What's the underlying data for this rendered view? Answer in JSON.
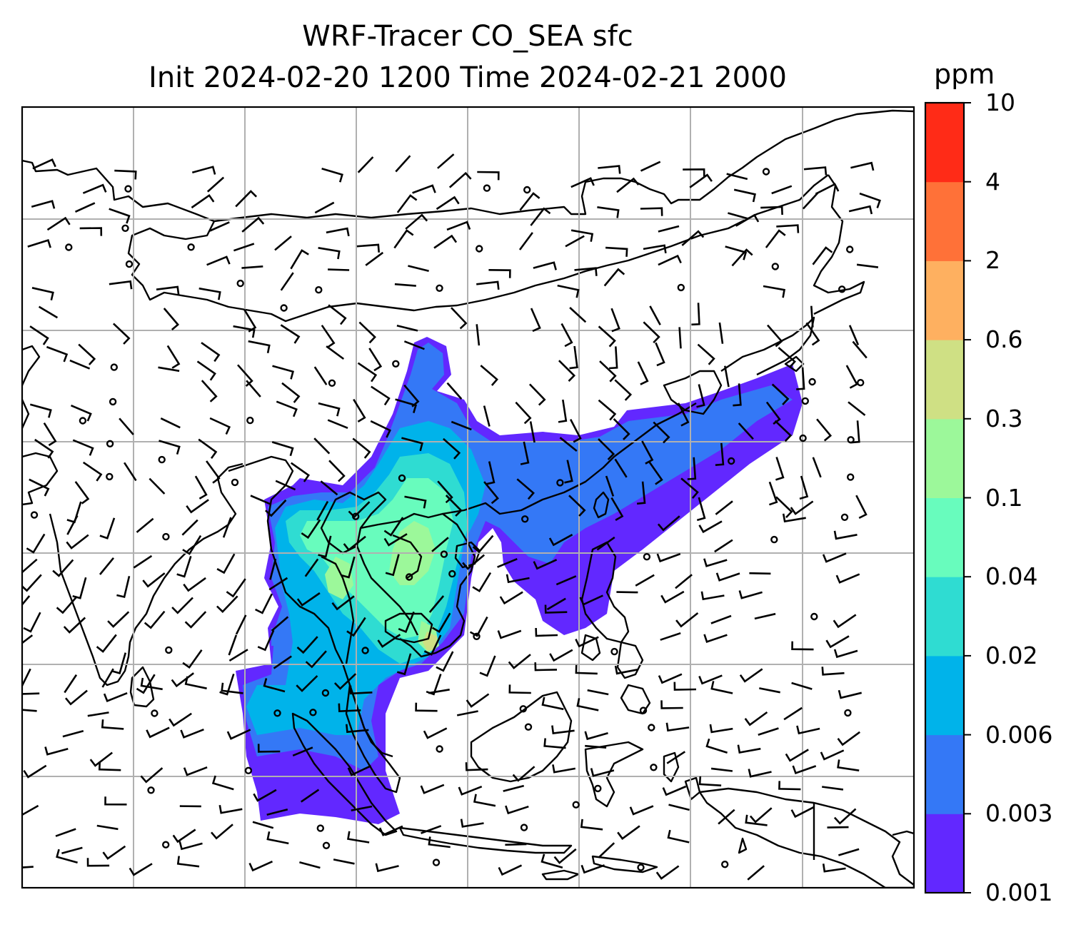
{
  "title": {
    "line1": "WRF-Tracer CO_SEA sfc",
    "line2": "Init 2024-02-20 1200 Time 2024-02-21 2000"
  },
  "colorbar": {
    "unit": "ppm",
    "levels": [
      "0.001",
      "0.003",
      "0.006",
      "0.02",
      "0.04",
      "0.1",
      "0.3",
      "0.6",
      "2",
      "4",
      "10"
    ],
    "colors": [
      "#6228ff",
      "#3478f6",
      "#00b3ea",
      "#2fdcd2",
      "#68fcbd",
      "#9cf89a",
      "#cfe084",
      "#feb060",
      "#ff7138",
      "#ff2b17"
    ]
  },
  "map": {
    "region": "Southeast Asia",
    "grid": true,
    "gridline_color": "#b0b0b0",
    "coastline_color": "#000000",
    "wind_barb_color": "#000000"
  }
}
